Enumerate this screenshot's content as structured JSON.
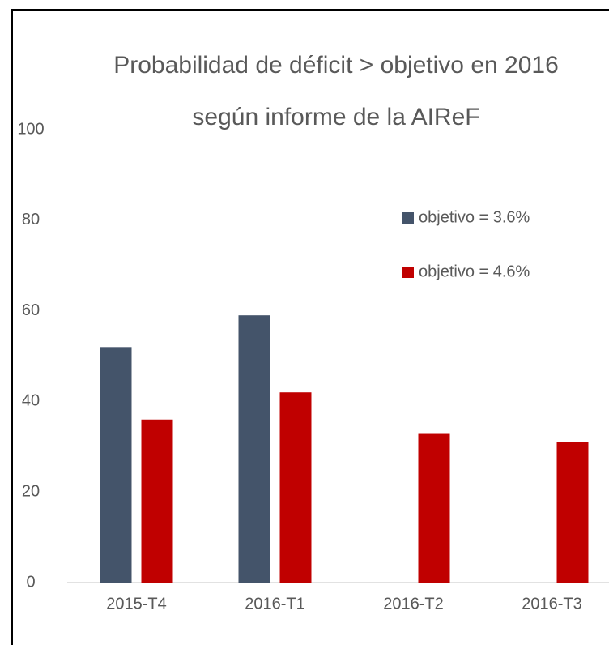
{
  "chart_data": {
    "type": "bar",
    "title": [
      "Probabilidad de déficit > objetivo en 2016",
      "según informe de la AIReF"
    ],
    "categories": [
      "2015-T4",
      "2016-T1",
      "2016-T2",
      "2016-T3"
    ],
    "series": [
      {
        "name": "objetivo = 3.6%",
        "color": "#44546a",
        "values": [
          52,
          59,
          null,
          null
        ]
      },
      {
        "name": "objetivo = 4.6%",
        "color": "#c00000",
        "values": [
          36,
          42,
          33,
          31
        ]
      }
    ],
    "ylim": [
      0,
      100
    ],
    "yticks": [
      0,
      20,
      40,
      60,
      80,
      100
    ],
    "grid": false,
    "legend": "upper right"
  }
}
